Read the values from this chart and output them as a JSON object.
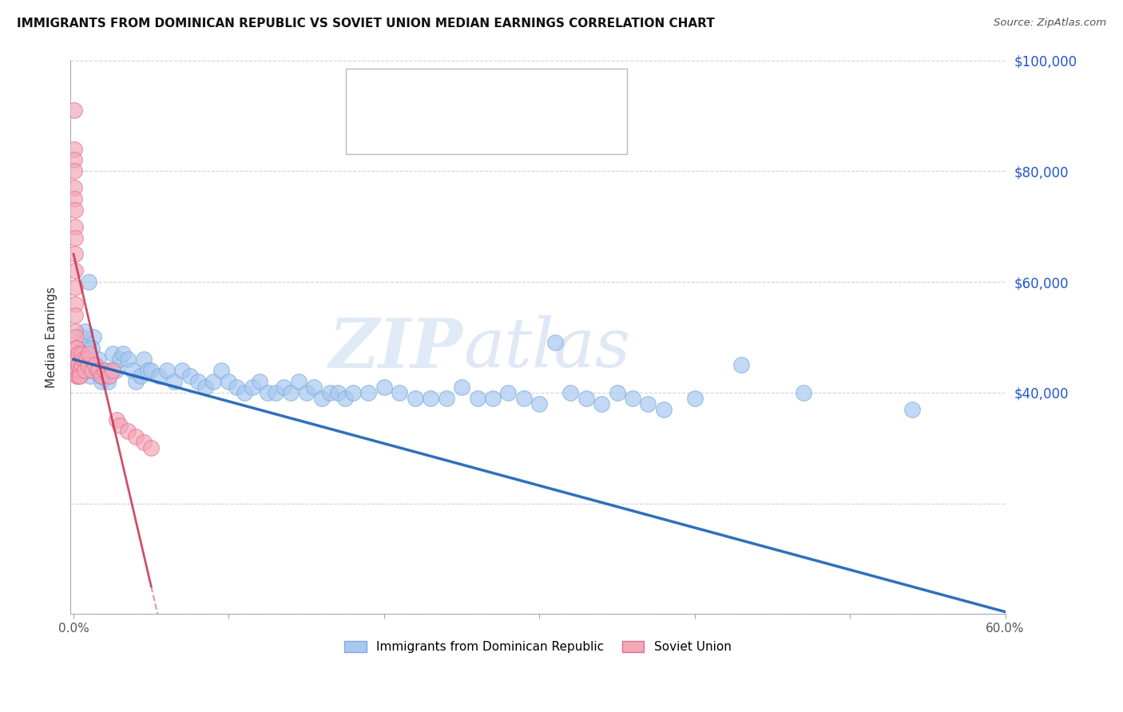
{
  "title": "IMMIGRANTS FROM DOMINICAN REPUBLIC VS SOVIET UNION MEDIAN EARNINGS CORRELATION CHART",
  "source": "Source: ZipAtlas.com",
  "ylabel": "Median Earnings",
  "watermark_zip": "ZIP",
  "watermark_atlas": "atlas",
  "legend_labels_bottom": [
    "Immigrants from Dominican Republic",
    "Soviet Union"
  ],
  "blue_scatter_color": "#a8c8f0",
  "blue_scatter_edge": "#7aabdc",
  "pink_scatter_color": "#f4a8b8",
  "pink_scatter_edge": "#e07090",
  "blue_line_color": "#1a5fb4",
  "pink_line_color": "#c83050",
  "axis_label_color": "#2255cc",
  "ylim": [
    0,
    100000
  ],
  "xlim": [
    -0.002,
    0.6
  ],
  "blue_line_intercept": 46000,
  "blue_line_slope": -76000,
  "pink_line_intercept": 65000,
  "pink_line_slope": -1200000,
  "pink_line_xmax": 0.05,
  "dr_x": [
    0.003,
    0.005,
    0.006,
    0.007,
    0.008,
    0.009,
    0.01,
    0.011,
    0.012,
    0.013,
    0.014,
    0.015,
    0.016,
    0.017,
    0.018,
    0.019,
    0.02,
    0.021,
    0.022,
    0.023,
    0.025,
    0.027,
    0.03,
    0.032,
    0.035,
    0.038,
    0.04,
    0.043,
    0.045,
    0.048,
    0.05,
    0.055,
    0.06,
    0.065,
    0.07,
    0.075,
    0.08,
    0.085,
    0.09,
    0.095,
    0.1,
    0.105,
    0.11,
    0.115,
    0.12,
    0.125,
    0.13,
    0.135,
    0.14,
    0.145,
    0.15,
    0.155,
    0.16,
    0.165,
    0.17,
    0.175,
    0.18,
    0.19,
    0.2,
    0.21,
    0.22,
    0.23,
    0.24,
    0.25,
    0.26,
    0.27,
    0.28,
    0.29,
    0.3,
    0.31,
    0.32,
    0.33,
    0.34,
    0.35,
    0.36,
    0.37,
    0.38,
    0.4,
    0.43,
    0.47,
    0.54,
    0.01,
    0.012,
    0.007
  ],
  "dr_y": [
    46000,
    47000,
    50000,
    46000,
    44000,
    45000,
    48000,
    43000,
    44000,
    50000,
    45000,
    44000,
    46000,
    43000,
    42000,
    44000,
    43000,
    43000,
    42000,
    44000,
    47000,
    44000,
    46000,
    47000,
    46000,
    44000,
    42000,
    43000,
    46000,
    44000,
    44000,
    43000,
    44000,
    42000,
    44000,
    43000,
    42000,
    41000,
    42000,
    44000,
    42000,
    41000,
    40000,
    41000,
    42000,
    40000,
    40000,
    41000,
    40000,
    42000,
    40000,
    41000,
    39000,
    40000,
    40000,
    39000,
    40000,
    40000,
    41000,
    40000,
    39000,
    39000,
    39000,
    41000,
    39000,
    39000,
    40000,
    39000,
    38000,
    49000,
    40000,
    39000,
    38000,
    40000,
    39000,
    38000,
    37000,
    39000,
    45000,
    40000,
    37000,
    60000,
    48000,
    51000
  ],
  "su_x": [
    0.0005,
    0.0005,
    0.0005,
    0.0005,
    0.0005,
    0.0005,
    0.001,
    0.001,
    0.001,
    0.001,
    0.001,
    0.001,
    0.001,
    0.001,
    0.001,
    0.0015,
    0.0015,
    0.0015,
    0.0015,
    0.002,
    0.002,
    0.002,
    0.002,
    0.0025,
    0.003,
    0.003,
    0.003,
    0.004,
    0.004,
    0.005,
    0.005,
    0.006,
    0.007,
    0.008,
    0.009,
    0.01,
    0.012,
    0.014,
    0.016,
    0.018,
    0.02,
    0.023,
    0.025,
    0.028,
    0.03,
    0.035,
    0.04,
    0.045,
    0.05
  ],
  "su_y": [
    91000,
    84000,
    82000,
    80000,
    77000,
    75000,
    73000,
    70000,
    68000,
    65000,
    62000,
    59000,
    56000,
    54000,
    51000,
    50000,
    48000,
    46000,
    44000,
    48000,
    46000,
    44000,
    43000,
    44000,
    47000,
    45000,
    43000,
    44000,
    43000,
    47000,
    45000,
    46000,
    44000,
    46000,
    45000,
    47000,
    44000,
    45000,
    44000,
    43000,
    44000,
    43000,
    44000,
    35000,
    34000,
    33000,
    32000,
    31000,
    30000
  ]
}
